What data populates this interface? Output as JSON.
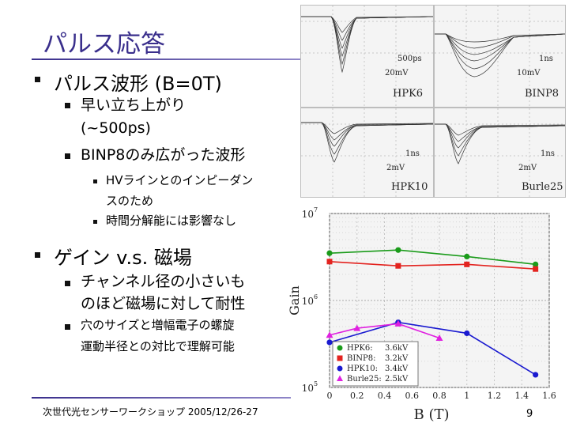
{
  "slide": {
    "title": "パルス応答",
    "bullets": [
      {
        "text": "パルス波形 (B=0T)"
      },
      {
        "text": "早い立ち上がり"
      },
      {
        "text": "(~500ps)"
      },
      {
        "text": "BINP8のみ広がった波形"
      },
      {
        "text": "HVラインとのインピーダン"
      },
      {
        "text": "スのため"
      },
      {
        "text": "時間分解能には影響なし"
      },
      {
        "text": "ゲイン v.s. 磁場"
      },
      {
        "text": "チャンネル径の小さいも"
      },
      {
        "text": "のほど磁場に対して耐性"
      },
      {
        "text": "穴のサイズと増幅電子の螺旋"
      },
      {
        "text": "運動半径との対比で理解可能"
      }
    ],
    "footer": "次世代光センサーワークショップ 2005/12/26-27",
    "page": "9"
  },
  "scope_panels": [
    {
      "name": "HPK6",
      "time_scale": "500ps",
      "volt_scale": "20mV"
    },
    {
      "name": "BINP8",
      "time_scale": "1ns",
      "volt_scale": "10mV"
    },
    {
      "name": "HPK10",
      "time_scale": "1ns",
      "volt_scale": "2mV"
    },
    {
      "name": "Burle25",
      "time_scale": "1ns",
      "volt_scale": "2mV"
    }
  ],
  "chart_data": {
    "type": "scatter",
    "title": "",
    "xlabel": "B (T)",
    "ylabel": "Gain",
    "xlim": [
      0,
      1.6
    ],
    "ylim": [
      100000,
      10000000
    ],
    "yscale": "log",
    "x_ticks": [
      "0",
      "0.2",
      "0.4",
      "0.6",
      "0.8",
      "1",
      "1.2",
      "1.4",
      "1.6"
    ],
    "y_tick_labels": [
      {
        "base": "10",
        "exp": "7"
      },
      {
        "base": "10",
        "exp": "6"
      },
      {
        "base": "10",
        "exp": "5"
      }
    ],
    "legend": {
      "position": "bottom-left"
    },
    "series": [
      {
        "name": "HPK6",
        "label": "HPK6:",
        "voltage": "3.6kV",
        "color": "#1a9b1a",
        "marker": "circle",
        "x": [
          0,
          0.5,
          1,
          1.5
        ],
        "y": [
          3500000,
          3800000,
          3200000,
          2600000
        ]
      },
      {
        "name": "BINP8",
        "label": "BINP8:",
        "voltage": "3.2kV",
        "color": "#e3231f",
        "marker": "square",
        "x": [
          0,
          0.5,
          1,
          1.5
        ],
        "y": [
          2800000,
          2500000,
          2600000,
          2300000
        ]
      },
      {
        "name": "HPK10",
        "label": "HPK10:",
        "voltage": "3.4kV",
        "color": "#1a1ad0",
        "marker": "circle",
        "x": [
          0,
          0.5,
          1,
          1.5
        ],
        "y": [
          330000,
          560000,
          420000,
          140000
        ]
      },
      {
        "name": "Burle25",
        "label": "Burle25:",
        "voltage": "2.5kV",
        "color": "#e020e0",
        "marker": "triangle",
        "x": [
          0,
          0.2,
          0.5,
          0.8
        ],
        "y": [
          400000,
          480000,
          540000,
          370000
        ]
      }
    ]
  },
  "colors": {
    "title": "#3a2f8c",
    "rule": "#3a2f8c"
  }
}
